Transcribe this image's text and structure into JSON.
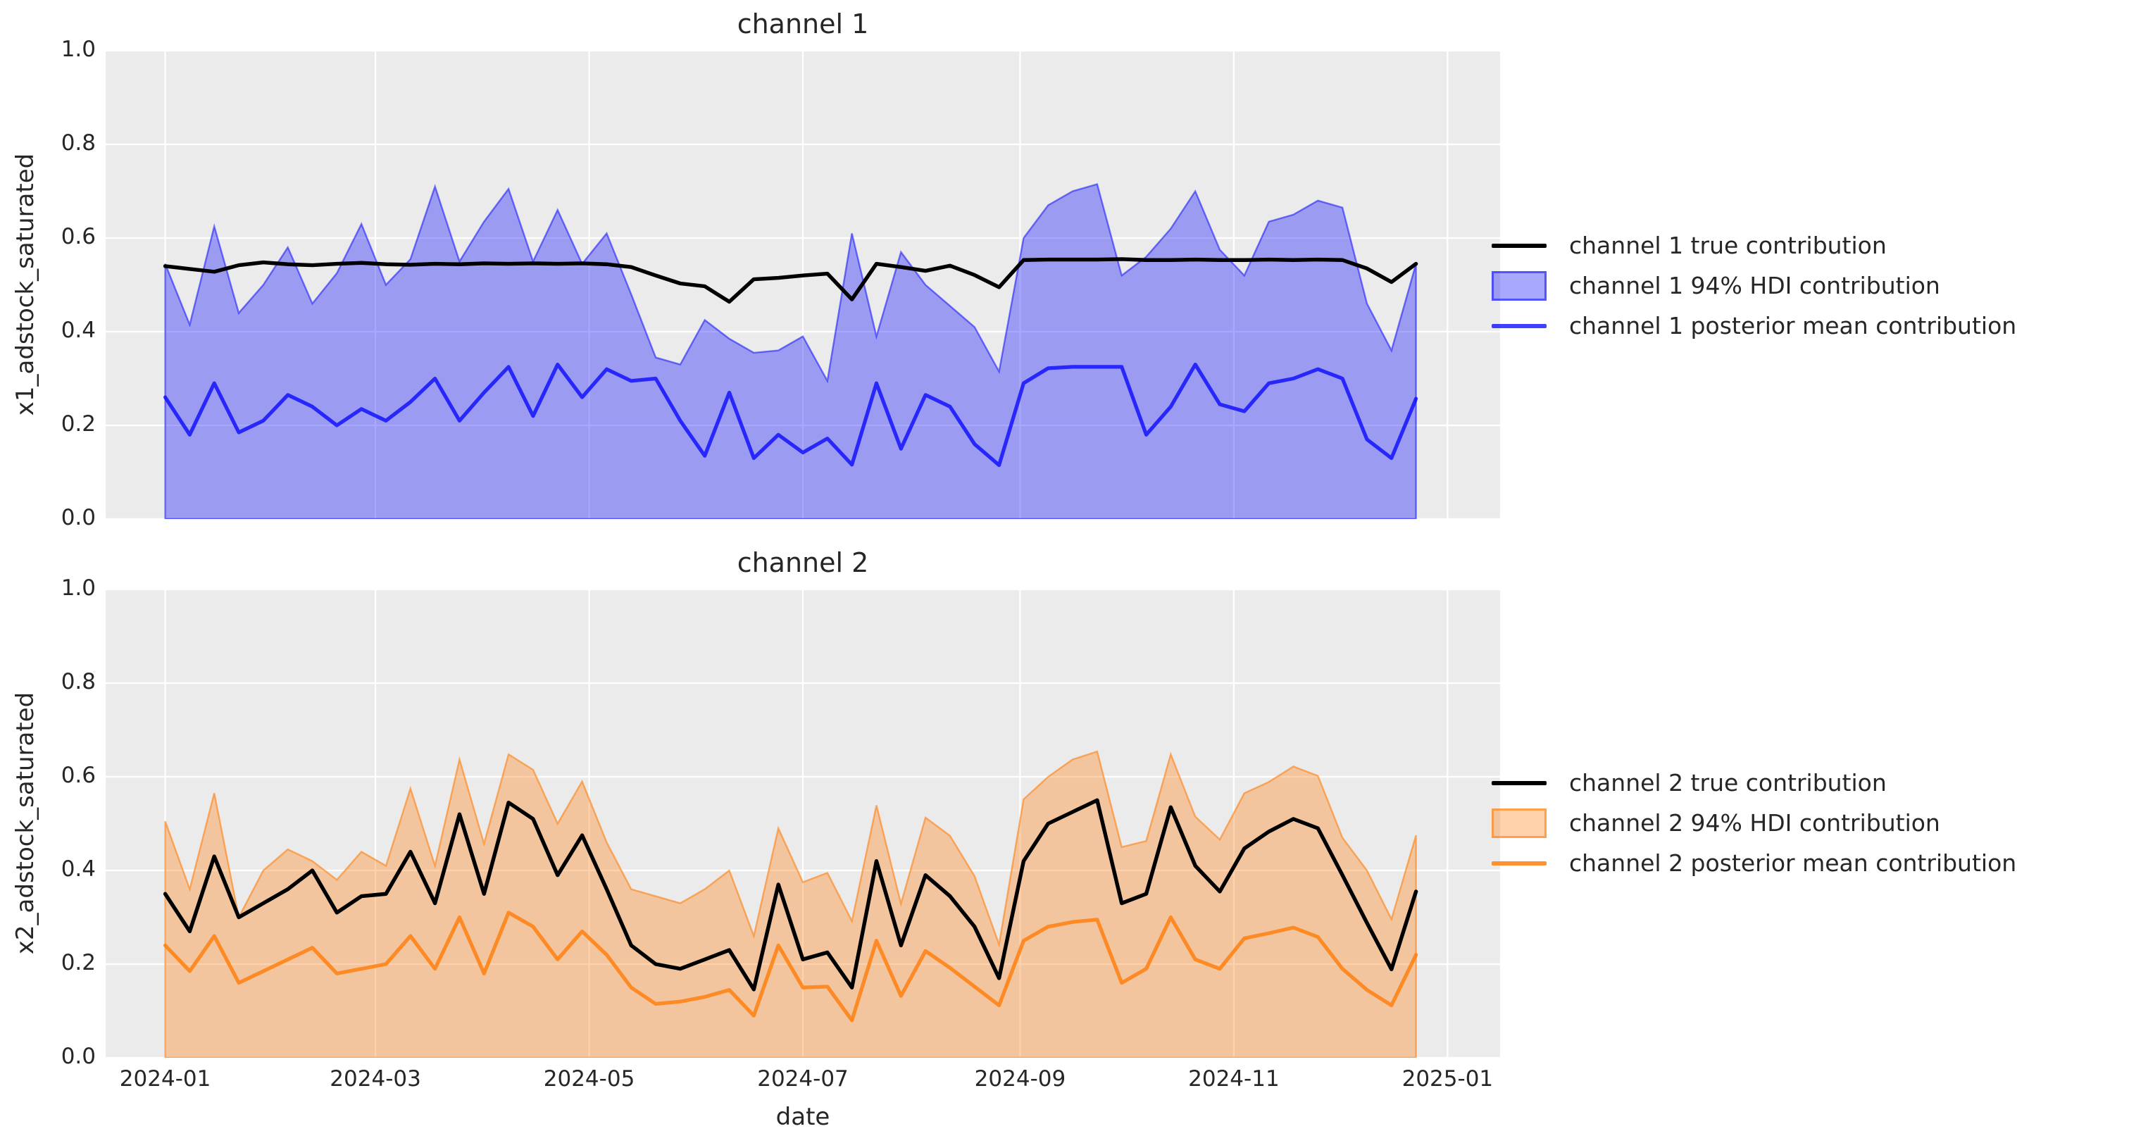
{
  "figure": {
    "background": "#ffffff",
    "plot_bg": "#ebebeb",
    "grid_color": "#ffffff",
    "text_color": "#262626"
  },
  "axis": {
    "xlabel": "date",
    "xlim_days": [
      -17,
      381
    ],
    "ylim": [
      0,
      1
    ],
    "x_ticks": [
      {
        "day": 0,
        "label": "2024-01"
      },
      {
        "day": 60,
        "label": "2024-03"
      },
      {
        "day": 121,
        "label": "2024-05"
      },
      {
        "day": 182,
        "label": "2024-07"
      },
      {
        "day": 244,
        "label": "2024-09"
      },
      {
        "day": 305,
        "label": "2024-11"
      },
      {
        "day": 366,
        "label": "2025-01"
      }
    ],
    "y_ticks": [
      {
        "value": 0.0,
        "label": "0.0"
      },
      {
        "value": 0.2,
        "label": "0.2"
      },
      {
        "value": 0.4,
        "label": "0.4"
      },
      {
        "value": 0.6,
        "label": "0.6"
      },
      {
        "value": 0.8,
        "label": "0.8"
      },
      {
        "value": 1.0,
        "label": "1.0"
      }
    ]
  },
  "chart_data": [
    {
      "type": "line",
      "title": "channel 1",
      "ylabel": "x1_adstock_saturated",
      "xlabel": "date",
      "x_start": "2024-01-01",
      "x_interval_days": 7,
      "n_points": 52,
      "true_color": "#000000",
      "band_fill": "rgba(0,0,255,0.34)",
      "band_edge": "rgba(0,0,255,0.5)",
      "mean_color": "rgba(0,0,255,0.75)",
      "legend": [
        "channel 1 true contribution",
        "channel 1 94% HDI contribution",
        "channel 1 posterior mean contribution"
      ],
      "true_contribution": [
        0.54,
        0.534,
        0.528,
        0.542,
        0.548,
        0.544,
        0.542,
        0.545,
        0.547,
        0.544,
        0.543,
        0.545,
        0.544,
        0.546,
        0.545,
        0.546,
        0.545,
        0.546,
        0.544,
        0.538,
        0.52,
        0.503,
        0.497,
        0.464,
        0.512,
        0.515,
        0.52,
        0.524,
        0.469,
        0.545,
        0.538,
        0.53,
        0.541,
        0.521,
        0.495,
        0.553,
        0.554,
        0.554,
        0.554,
        0.555,
        0.553,
        0.553,
        0.554,
        0.553,
        0.553,
        0.554,
        0.553,
        0.554,
        0.553,
        0.535,
        0.506,
        0.545
      ],
      "hdi_lower": 0,
      "hdi_upper": [
        0.545,
        0.415,
        0.625,
        0.44,
        0.5,
        0.58,
        0.46,
        0.525,
        0.63,
        0.5,
        0.555,
        0.71,
        0.55,
        0.635,
        0.705,
        0.55,
        0.66,
        0.545,
        0.61,
        0.48,
        0.345,
        0.33,
        0.425,
        0.385,
        0.355,
        0.36,
        0.39,
        0.295,
        0.61,
        0.39,
        0.57,
        0.5,
        0.455,
        0.41,
        0.315,
        0.6,
        0.67,
        0.7,
        0.715,
        0.52,
        0.56,
        0.62,
        0.7,
        0.575,
        0.52,
        0.635,
        0.65,
        0.68,
        0.665,
        0.46,
        0.36,
        0.545
      ],
      "posterior_mean": [
        0.26,
        0.18,
        0.29,
        0.185,
        0.21,
        0.265,
        0.24,
        0.2,
        0.235,
        0.21,
        0.25,
        0.3,
        0.21,
        0.27,
        0.325,
        0.22,
        0.33,
        0.26,
        0.32,
        0.295,
        0.3,
        0.21,
        0.135,
        0.27,
        0.13,
        0.18,
        0.142,
        0.172,
        0.116,
        0.29,
        0.15,
        0.265,
        0.24,
        0.16,
        0.115,
        0.29,
        0.322,
        0.325,
        0.325,
        0.325,
        0.18,
        0.24,
        0.33,
        0.245,
        0.23,
        0.29,
        0.3,
        0.32,
        0.3,
        0.17,
        0.13,
        0.257
      ]
    },
    {
      "type": "line",
      "title": "channel 2",
      "ylabel": "x2_adstock_saturated",
      "xlabel": "date",
      "x_start": "2024-01-01",
      "x_interval_days": 7,
      "n_points": 52,
      "true_color": "#000000",
      "band_fill": "rgba(255,127,14,0.35)",
      "band_edge": "rgba(255,127,14,0.6)",
      "mean_color": "rgba(255,127,14,0.85)",
      "legend": [
        "channel 2 true contribution",
        "channel 2 94% HDI contribution",
        "channel 2 posterior mean contribution"
      ],
      "true_contribution": [
        0.35,
        0.27,
        0.43,
        0.3,
        0.33,
        0.36,
        0.4,
        0.31,
        0.345,
        0.35,
        0.44,
        0.33,
        0.52,
        0.35,
        0.545,
        0.51,
        0.39,
        0.475,
        0.36,
        0.24,
        0.2,
        0.19,
        0.21,
        0.23,
        0.146,
        0.37,
        0.21,
        0.225,
        0.15,
        0.42,
        0.24,
        0.39,
        0.345,
        0.28,
        0.17,
        0.42,
        0.5,
        0.525,
        0.55,
        0.33,
        0.35,
        0.535,
        0.41,
        0.355,
        0.447,
        0.483,
        0.51,
        0.49,
        0.39,
        0.288,
        0.189,
        0.355
      ],
      "hdi_lower": 0,
      "hdi_upper": [
        0.505,
        0.36,
        0.565,
        0.3,
        0.4,
        0.445,
        0.42,
        0.38,
        0.44,
        0.41,
        0.575,
        0.41,
        0.637,
        0.457,
        0.648,
        0.615,
        0.5,
        0.59,
        0.46,
        0.36,
        0.345,
        0.33,
        0.36,
        0.4,
        0.26,
        0.49,
        0.375,
        0.395,
        0.292,
        0.539,
        0.329,
        0.513,
        0.474,
        0.388,
        0.242,
        0.552,
        0.6,
        0.637,
        0.654,
        0.45,
        0.463,
        0.648,
        0.515,
        0.466,
        0.565,
        0.589,
        0.622,
        0.602,
        0.47,
        0.4,
        0.296,
        0.475
      ],
      "posterior_mean": [
        0.24,
        0.185,
        0.26,
        0.16,
        0.185,
        0.21,
        0.235,
        0.18,
        0.19,
        0.2,
        0.26,
        0.19,
        0.3,
        0.18,
        0.31,
        0.28,
        0.21,
        0.27,
        0.22,
        0.15,
        0.115,
        0.12,
        0.13,
        0.145,
        0.09,
        0.24,
        0.15,
        0.152,
        0.08,
        0.25,
        0.132,
        0.228,
        0.192,
        0.152,
        0.112,
        0.25,
        0.28,
        0.29,
        0.295,
        0.16,
        0.19,
        0.3,
        0.21,
        0.19,
        0.255,
        0.266,
        0.278,
        0.258,
        0.19,
        0.145,
        0.112,
        0.22
      ]
    }
  ]
}
